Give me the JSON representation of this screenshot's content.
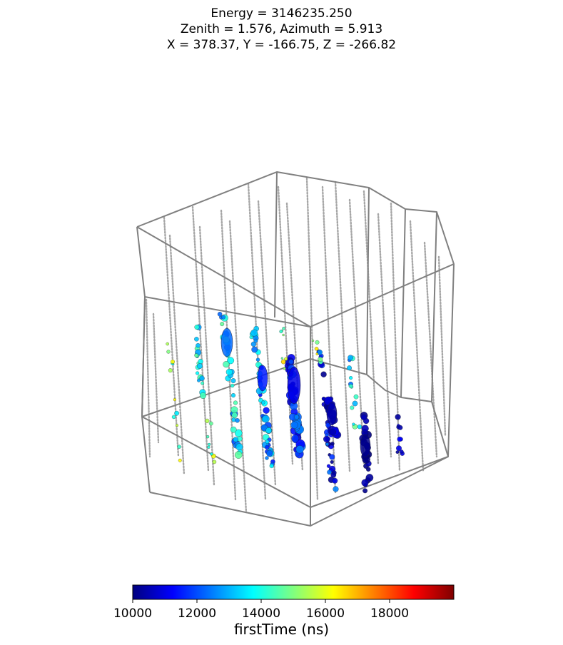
{
  "title": {
    "line1": "Energy = 3146235.250",
    "line2": "Zenith = 1.576, Azimuth = 5.913",
    "line3": "X = 378.37, Y = -166.75, Z = -266.82"
  },
  "chart_data": {
    "type": "scatter",
    "projection": "3d",
    "title_lines": [
      "Energy = 3146235.250",
      "Zenith = 1.576, Azimuth = 5.913",
      "X = 378.37, Y = -166.75, Z = -266.82"
    ],
    "colorbar": {
      "label": "firstTime (ns)",
      "colormap": "jet",
      "range": [
        10000,
        20000
      ],
      "ticks": [
        10000,
        12000,
        14000,
        16000,
        18000
      ]
    },
    "grid": false,
    "axes_visible": false,
    "outline_color": "#808080",
    "dom_color": "#a6a6a6"
  }
}
